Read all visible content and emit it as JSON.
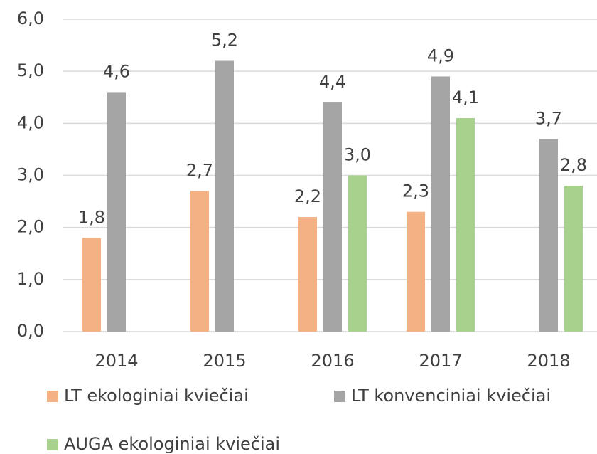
{
  "chart_data": {
    "type": "bar",
    "categories": [
      "2014",
      "2015",
      "2016",
      "2017",
      "2018"
    ],
    "series": [
      {
        "name": "LT ekologiniai kviečiai",
        "color": "#f4b183",
        "values": [
          1.8,
          2.7,
          2.2,
          2.3,
          null
        ],
        "value_labels": [
          "1,8",
          "2,7",
          "2,2",
          "2,3",
          null
        ]
      },
      {
        "name": "LT konvenciniai kviečiai",
        "color": "#a5a5a5",
        "values": [
          4.6,
          5.2,
          4.4,
          4.9,
          3.7
        ],
        "value_labels": [
          "4,6",
          "5,2",
          "4,4",
          "4,9",
          "3,7"
        ]
      },
      {
        "name": "AUGA ekologiniai kviečiai",
        "color": "#a9d18e",
        "values": [
          null,
          null,
          3.0,
          4.1,
          2.8
        ],
        "value_labels": [
          null,
          null,
          "3,0",
          "4,1",
          "2,8"
        ]
      }
    ],
    "ylim": [
      0,
      6
    ],
    "yticks": [
      {
        "value": 0,
        "label": "0,0"
      },
      {
        "value": 1,
        "label": "1,0"
      },
      {
        "value": 2,
        "label": "2,0"
      },
      {
        "value": 3,
        "label": "3,0"
      },
      {
        "value": 4,
        "label": "4,0"
      },
      {
        "value": 5,
        "label": "5,0"
      },
      {
        "value": 6,
        "label": "6,0"
      }
    ],
    "grid": true,
    "legend": "bottom"
  }
}
